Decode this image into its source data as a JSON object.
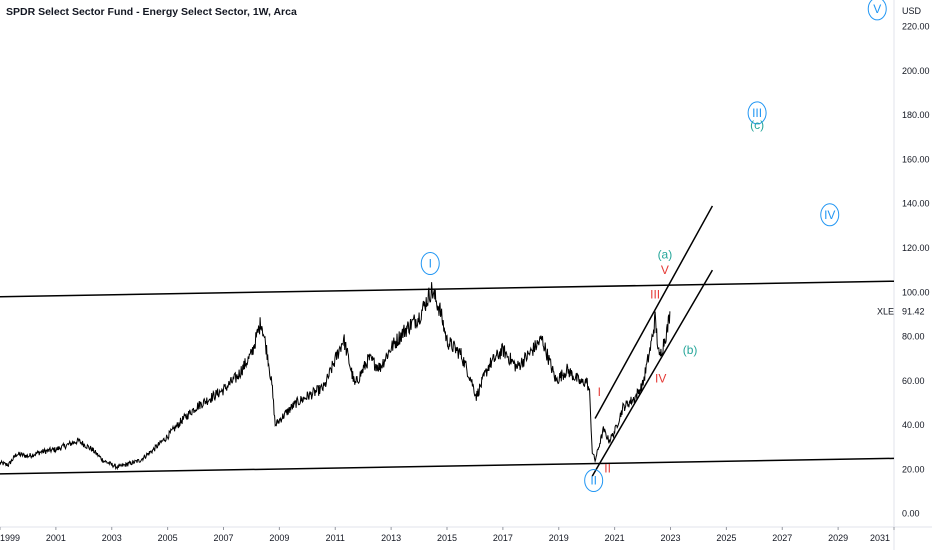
{
  "title": "SPDR Select Sector Fund - Energy Select Sector, 1W, Arca",
  "chart_data": {
    "type": "line",
    "currency": "USD",
    "symbol": "XLE",
    "last_price": "91.42",
    "xlim": [
      1999.0,
      2031.0
    ],
    "ylim": [
      -6,
      232
    ],
    "x_ticks": [
      "1999",
      "2001",
      "2003",
      "2005",
      "2007",
      "2009",
      "2011",
      "2013",
      "2015",
      "2017",
      "2019",
      "2021",
      "2023",
      "2025",
      "2027",
      "2029",
      "2031"
    ],
    "y_ticks": [
      "0.00",
      "20.00",
      "40.00",
      "60.00",
      "80.00",
      "100.00",
      "120.00",
      "140.00",
      "160.00",
      "180.00",
      "200.00",
      "220.00"
    ],
    "price_anchors": [
      [
        1999.0,
        23
      ],
      [
        1999.3,
        22
      ],
      [
        1999.6,
        27
      ],
      [
        2000.0,
        26
      ],
      [
        2000.5,
        28
      ],
      [
        2001.0,
        29
      ],
      [
        2001.8,
        33
      ],
      [
        2002.3,
        29
      ],
      [
        2002.7,
        24
      ],
      [
        2003.2,
        21
      ],
      [
        2004.0,
        24
      ],
      [
        2004.5,
        29
      ],
      [
        2005.0,
        35
      ],
      [
        2005.5,
        42
      ],
      [
        2006.0,
        48
      ],
      [
        2006.5,
        52
      ],
      [
        2007.0,
        56
      ],
      [
        2007.5,
        62
      ],
      [
        2008.0,
        72
      ],
      [
        2008.35,
        87
      ],
      [
        2008.6,
        70
      ],
      [
        2008.75,
        56
      ],
      [
        2008.85,
        40
      ],
      [
        2009.2,
        45
      ],
      [
        2009.6,
        50
      ],
      [
        2010.0,
        53
      ],
      [
        2010.6,
        57
      ],
      [
        2011.3,
        79
      ],
      [
        2011.7,
        58
      ],
      [
        2012.2,
        70
      ],
      [
        2012.6,
        66
      ],
      [
        2013.0,
        75
      ],
      [
        2013.5,
        83
      ],
      [
        2014.0,
        89
      ],
      [
        2014.45,
        101
      ],
      [
        2014.75,
        92
      ],
      [
        2015.0,
        78
      ],
      [
        2015.5,
        72
      ],
      [
        2015.85,
        61
      ],
      [
        2016.05,
        53
      ],
      [
        2016.5,
        67
      ],
      [
        2017.0,
        74
      ],
      [
        2017.5,
        66
      ],
      [
        2018.0,
        73
      ],
      [
        2018.4,
        79
      ],
      [
        2018.9,
        60
      ],
      [
        2019.3,
        65
      ],
      [
        2019.8,
        59
      ],
      [
        2020.0,
        60
      ],
      [
        2020.1,
        55
      ],
      [
        2020.2,
        28
      ],
      [
        2020.3,
        24
      ],
      [
        2020.6,
        38
      ],
      [
        2020.8,
        33
      ],
      [
        2021.0,
        37
      ],
      [
        2021.3,
        48
      ],
      [
        2021.7,
        52
      ],
      [
        2022.0,
        58
      ],
      [
        2022.3,
        76
      ],
      [
        2022.45,
        88
      ],
      [
        2022.6,
        70
      ],
      [
        2022.9,
        84
      ],
      [
        2022.98,
        91.42
      ]
    ],
    "trend_lines": [
      {
        "name": "channel-upper",
        "from": [
          1999.0,
          98
        ],
        "to": [
          2031.0,
          105
        ]
      },
      {
        "name": "channel-lower",
        "from": [
          1999.0,
          18
        ],
        "to": [
          2031.0,
          25
        ]
      },
      {
        "name": "wave-channel-upper",
        "from": [
          2020.3,
          43
        ],
        "to": [
          2024.5,
          139
        ]
      },
      {
        "name": "wave-channel-lower",
        "from": [
          2020.2,
          17
        ],
        "to": [
          2024.5,
          110
        ]
      }
    ],
    "wave_labels": [
      {
        "text": "I",
        "x": 2014.4,
        "y": 113,
        "color": "#2196f3",
        "circled": true
      },
      {
        "text": "II",
        "x": 2020.25,
        "y": 15,
        "color": "#2196f3",
        "circled": true
      },
      {
        "text": "III",
        "x": 2026.1,
        "y": 181,
        "color": "#2196f3",
        "circled": true
      },
      {
        "text": "IV",
        "x": 2028.7,
        "y": 135,
        "color": "#2196f3",
        "circled": true
      },
      {
        "text": "V",
        "x": 2030.4,
        "y": 228,
        "color": "#2196f3",
        "circled": true
      },
      {
        "text": "(a)",
        "x": 2022.8,
        "y": 117,
        "color": "#26a69a",
        "circled": false
      },
      {
        "text": "(b)",
        "x": 2023.7,
        "y": 74,
        "color": "#26a69a",
        "circled": false
      },
      {
        "text": "(c)",
        "x": 2026.1,
        "y": 175.5,
        "color": "#26a69a",
        "circled": false
      },
      {
        "text": "I",
        "x": 2020.45,
        "y": 55,
        "color": "#e53935",
        "circled": false
      },
      {
        "text": "II",
        "x": 2020.75,
        "y": 20.5,
        "color": "#e53935",
        "circled": false
      },
      {
        "text": "III",
        "x": 2022.45,
        "y": 99,
        "color": "#e53935",
        "circled": false
      },
      {
        "text": "IV",
        "x": 2022.65,
        "y": 61,
        "color": "#e53935",
        "circled": false
      },
      {
        "text": "V",
        "x": 2022.8,
        "y": 110,
        "color": "#e53935",
        "circled": false
      }
    ],
    "colors": {
      "price": "#000000",
      "trend": "#000000",
      "axis_text": "#131722"
    }
  }
}
